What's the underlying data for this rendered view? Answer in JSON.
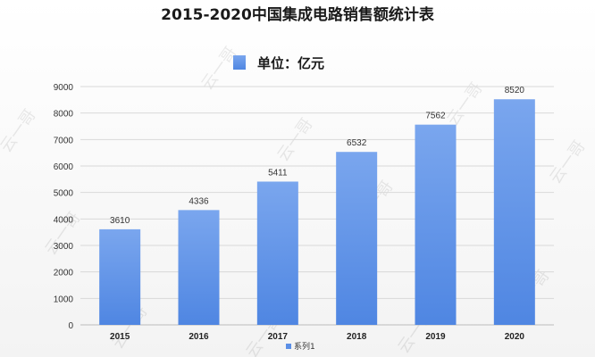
{
  "chart_data": {
    "type": "bar",
    "title": "2015-2020中国集成电路销售额统计表",
    "categories": [
      "2015",
      "2016",
      "2017",
      "2018",
      "2019",
      "2020"
    ],
    "series": [
      {
        "name": "系列1",
        "values": [
          3610,
          4336,
          5411,
          6532,
          7562,
          8520
        ]
      }
    ],
    "ylim": [
      0,
      9000
    ],
    "yticks": [
      0,
      1000,
      2000,
      3000,
      4000,
      5000,
      6000,
      7000,
      8000,
      9000
    ],
    "grid": true,
    "legend_top": "单位：亿元",
    "legend_bottom": "系列1",
    "bar_color": "#5b8fe6",
    "bar_color_light": "#7aa6ee"
  },
  "watermark": "云一哥"
}
